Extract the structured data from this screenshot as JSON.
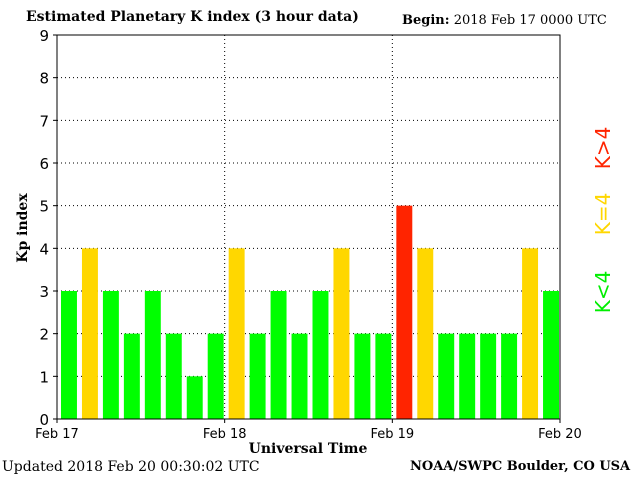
{
  "header": {
    "title": "Estimated Planetary K index (3 hour data)",
    "begin_label": "Begin:",
    "begin_value": "2018 Feb 17 0000 UTC"
  },
  "footer": {
    "updated": "Updated 2018 Feb 20 00:30:02 UTC",
    "credit": "NOAA/SWPC Boulder, CO USA"
  },
  "legend": {
    "low": "K<4",
    "equal": "K=4",
    "high": "K>4"
  },
  "colors": {
    "low": "#00ff00",
    "equal": "#ffd700",
    "high": "#ff2400"
  },
  "chart_data": {
    "type": "bar",
    "xlabel": "Universal Time",
    "ylabel": "Kp index",
    "ylim": [
      0,
      9
    ],
    "yticks": [
      0,
      1,
      2,
      3,
      4,
      5,
      6,
      7,
      8,
      9
    ],
    "x_tick_labels": [
      "Feb 17",
      "Feb 18",
      "Feb 19",
      "Feb 20"
    ],
    "grid": true,
    "values": [
      3,
      4,
      3,
      2,
      3,
      2,
      1,
      2,
      4,
      2,
      3,
      2,
      3,
      4,
      2,
      2,
      5,
      4,
      2,
      2,
      2,
      2,
      4,
      3
    ]
  }
}
